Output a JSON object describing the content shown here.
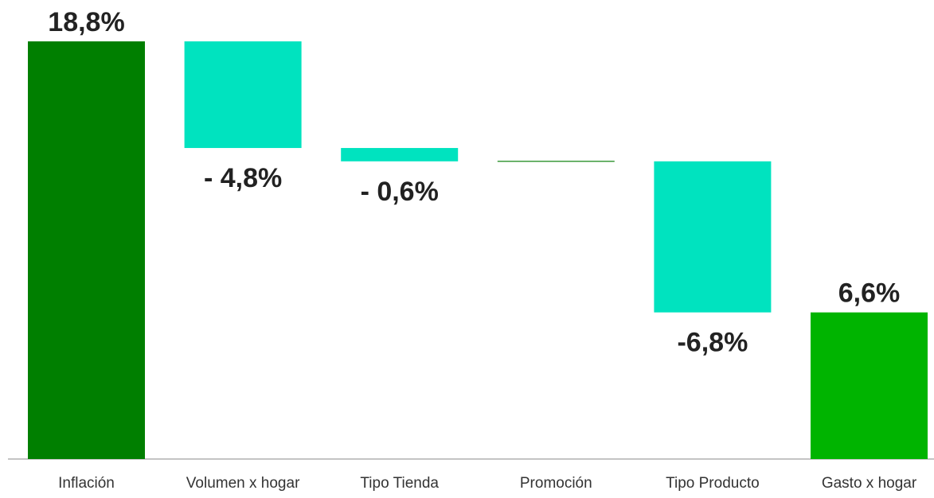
{
  "chart_data": {
    "type": "waterfall",
    "categories": [
      "Inflación",
      "Volumen x hogar",
      "Tipo Tienda",
      "Promoción",
      "Tipo Producto",
      "Gasto x hogar"
    ],
    "values": [
      18.8,
      -4.8,
      -0.6,
      0,
      -6.8,
      6.6
    ],
    "value_labels": [
      "18,8%",
      "- 4,8%",
      "- 0,6%",
      null,
      "-6,8%",
      "6,6%"
    ],
    "measure": [
      "absolute",
      "relative",
      "relative",
      "relative",
      "relative",
      "total"
    ],
    "colors": [
      "#007f00",
      "#00e3bf",
      "#00e3bf",
      "#3c9a3c",
      "#00e3bf",
      "#00b400"
    ]
  }
}
